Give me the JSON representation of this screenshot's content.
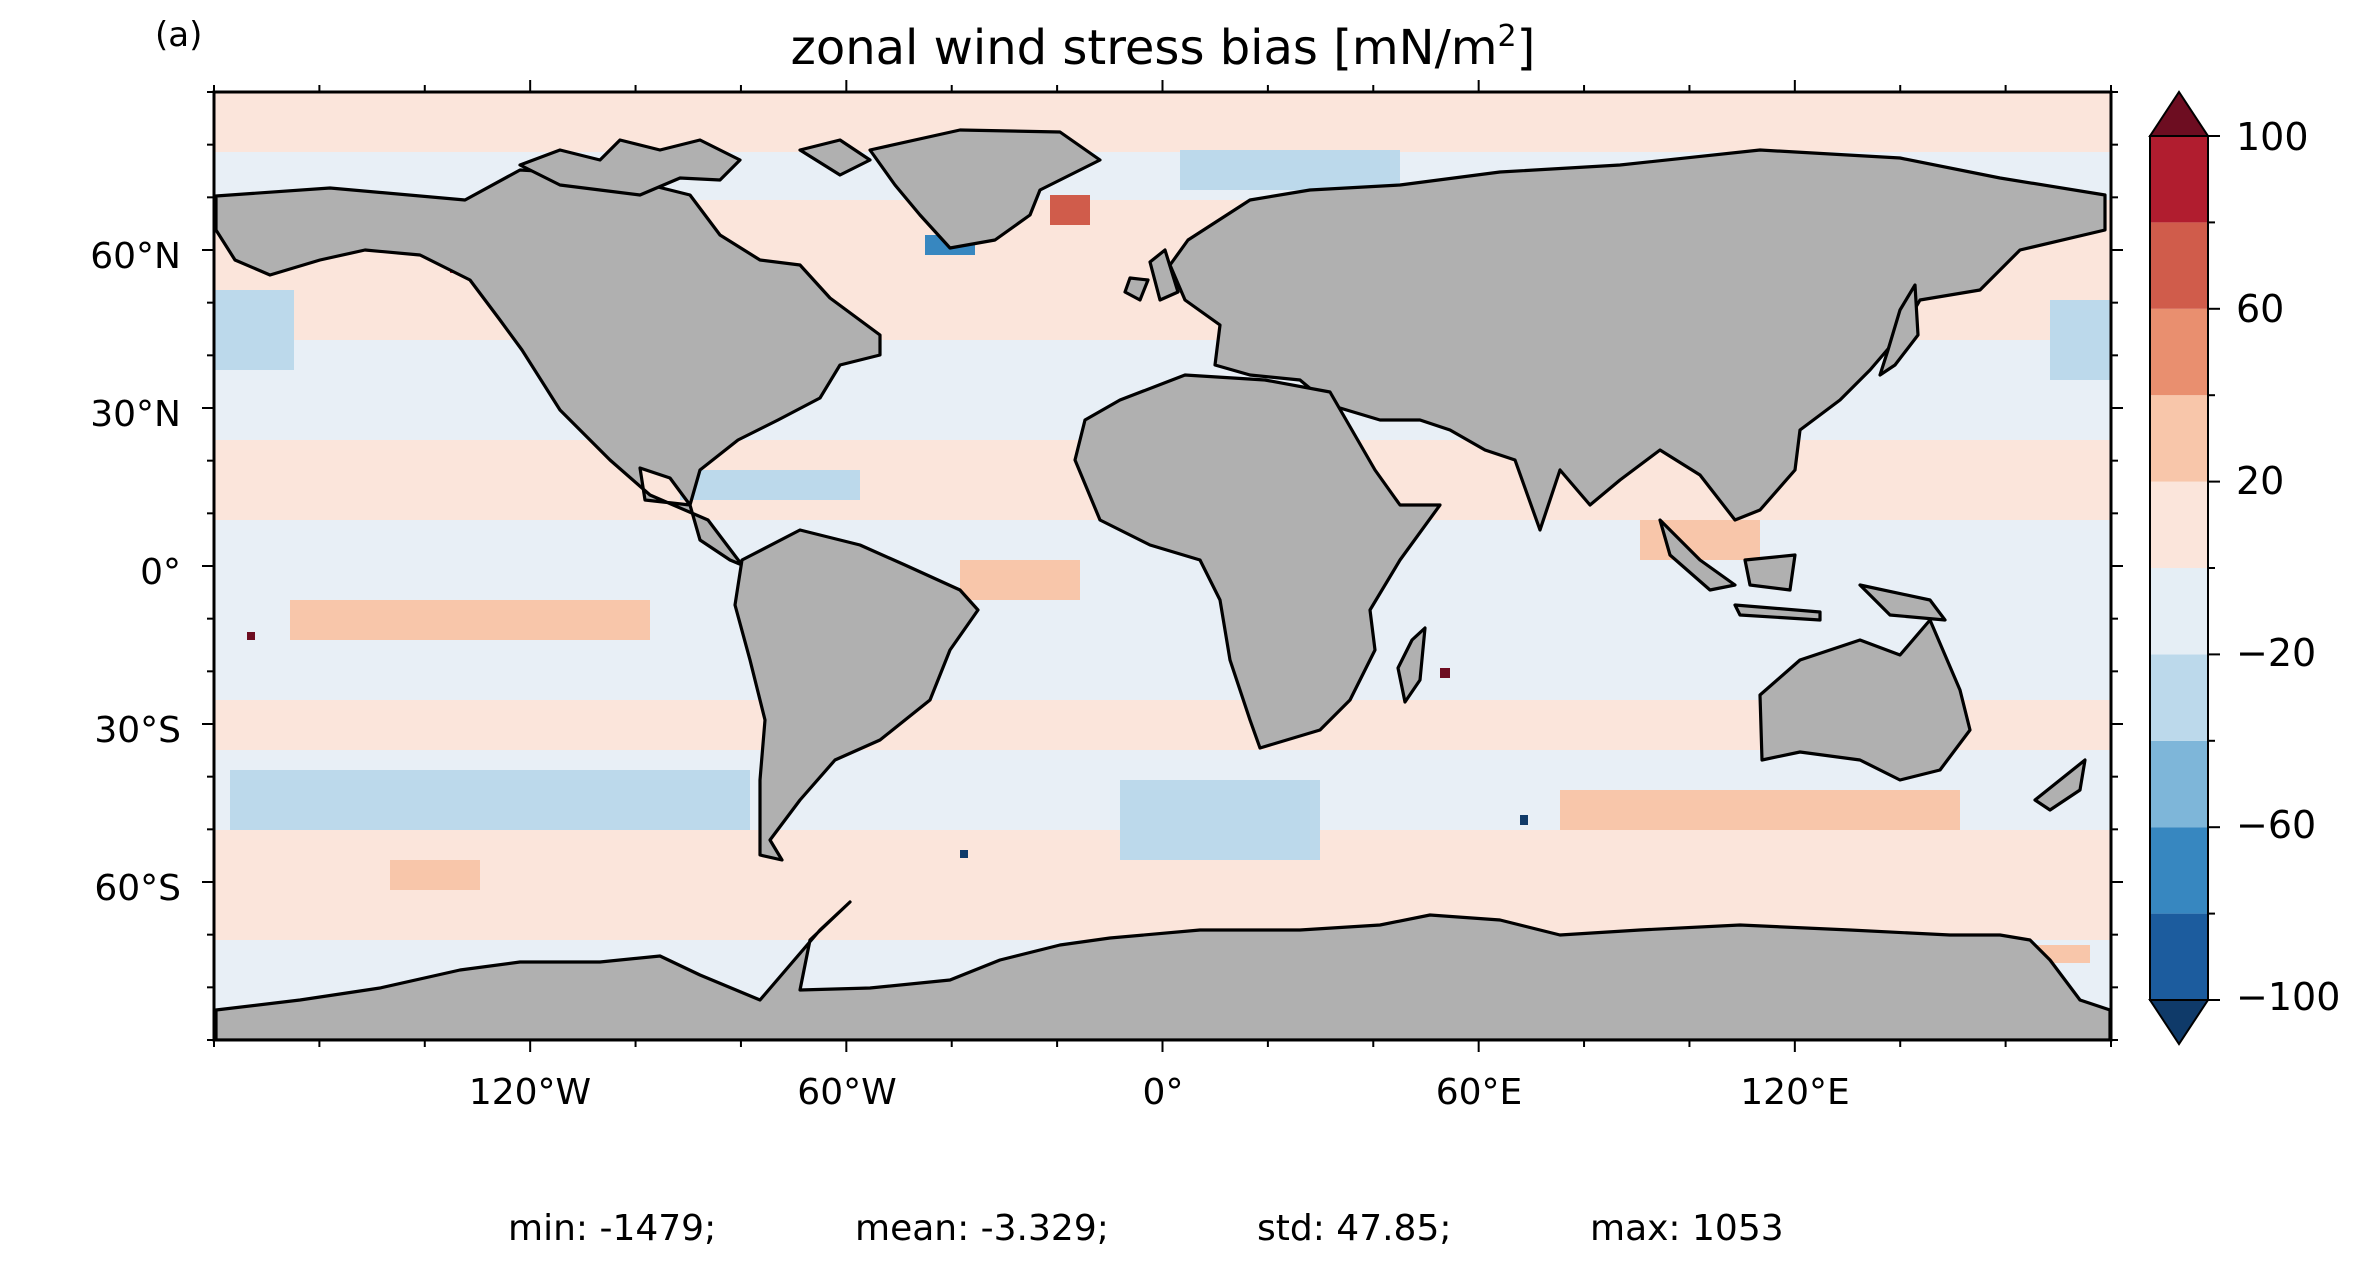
{
  "panel_label": "(a)",
  "title": "zonal wind stress bias [mN/m",
  "title_sup": "2",
  "title_end": "]",
  "colorbar": {
    "ticks": [
      "100",
      "60",
      "20",
      "−20",
      "−60",
      "−100"
    ],
    "tick_values": [
      100,
      60,
      20,
      -20,
      -60,
      -100
    ],
    "levels": [
      -100,
      -80,
      -60,
      -40,
      -20,
      0,
      20,
      40,
      60,
      80,
      100
    ],
    "colors": [
      "#1c5c9e",
      "#3787c0",
      "#7eb6d9",
      "#bcd9eb",
      "#e5eef5",
      "#fbe5db",
      "#f8c6aa",
      "#e98f6f",
      "#d05c4b",
      "#b11d2f"
    ],
    "under_color": "#0f3a69",
    "over_color": "#6d0d21"
  },
  "axes": {
    "lat_ticks": [
      "60°N",
      "30°N",
      "0°",
      "30°S",
      "60°S"
    ],
    "lat_values": [
      60,
      30,
      0,
      -30,
      -60
    ],
    "lon_ticks": [
      "120°W",
      "60°W",
      "0°",
      "60°E",
      "120°E"
    ],
    "lon_values": [
      -120,
      -60,
      0,
      60,
      120
    ],
    "lon_range": [
      -180,
      180
    ],
    "lat_range": [
      -90,
      90
    ]
  },
  "stats": {
    "min": "min: -1479;",
    "mean": "mean: -3.329;",
    "std": "std: 47.85;",
    "max": "max: 1053"
  },
  "land_color": "#b0b0b0"
}
